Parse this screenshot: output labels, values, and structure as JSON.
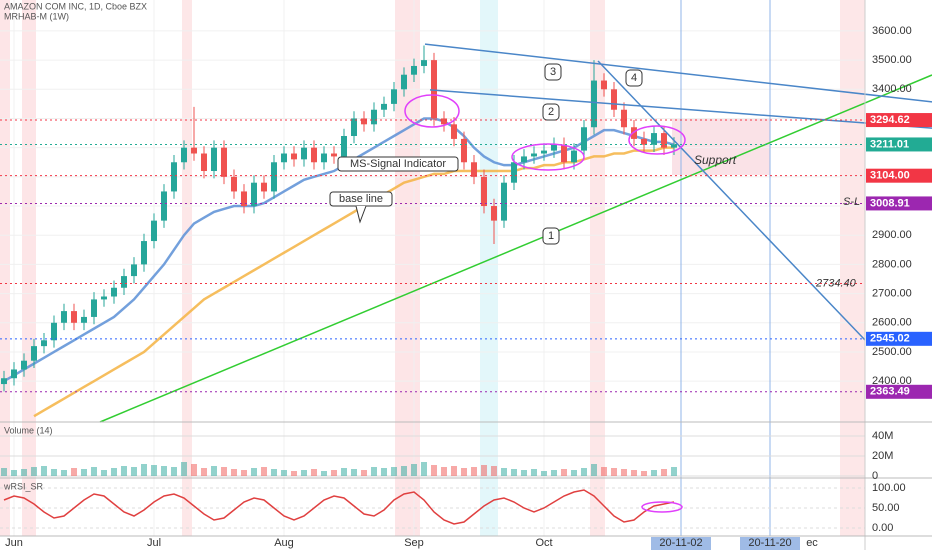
{
  "chart_data": {
    "type": "candlestick",
    "title": "AMAZON COM INC, 1D, Cboe BZX",
    "subtitle": "MRHAB-M (1W)",
    "categories": [
      null,
      "Jun",
      null,
      null,
      null,
      null,
      null,
      null,
      null,
      null,
      null,
      null,
      null,
      null,
      null,
      "Jul",
      null,
      null,
      null,
      null,
      null,
      null,
      null,
      null,
      null,
      null,
      null,
      null,
      "Aug",
      null,
      null,
      null,
      null,
      null,
      null,
      null,
      null,
      null,
      null,
      null,
      null,
      "Sep",
      null,
      null,
      null,
      null,
      null,
      null,
      null,
      null,
      null,
      null,
      null,
      null,
      "Oct",
      null,
      null,
      null,
      null,
      null,
      null,
      null,
      null,
      null,
      null,
      null,
      null,
      null
    ],
    "open": [
      2390,
      2410,
      2440,
      2470,
      2520,
      2540,
      2600,
      2640,
      2600,
      2620,
      2680,
      2690,
      2720,
      2760,
      2800,
      2880,
      2950,
      3050,
      3150,
      3200,
      3180,
      3120,
      3200,
      3100,
      3050,
      3000,
      3080,
      3050,
      3150,
      3180,
      3160,
      3200,
      3150,
      3180,
      3170,
      3240,
      3300,
      3280,
      3330,
      3350,
      3400,
      3450,
      3480,
      3500,
      3300,
      3280,
      3230,
      3150,
      3100,
      3000,
      2950,
      3080,
      3150,
      3170,
      3180,
      3190,
      3210,
      3150,
      3190,
      3270,
      3430,
      3400,
      3330,
      3270,
      3230,
      3210,
      3250,
      3200
    ],
    "high": [
      2435,
      2465,
      2495,
      2545,
      2565,
      2625,
      2665,
      2665,
      2645,
      2705,
      2715,
      2745,
      2785,
      2825,
      2905,
      2975,
      3075,
      3175,
      3225,
      3340,
      3205,
      3225,
      3225,
      3125,
      3075,
      3105,
      3105,
      3175,
      3205,
      3205,
      3225,
      3225,
      3205,
      3205,
      3265,
      3325,
      3325,
      3355,
      3375,
      3425,
      3475,
      3505,
      3550,
      3525,
      3325,
      3305,
      3255,
      3175,
      3125,
      3025,
      3105,
      3175,
      3195,
      3205,
      3215,
      3235,
      3235,
      3215,
      3295,
      3500,
      3455,
      3425,
      3355,
      3295,
      3255,
      3275,
      3275,
      3236
    ],
    "low": [
      2365,
      2385,
      2415,
      2445,
      2495,
      2515,
      2575,
      2575,
      2575,
      2595,
      2655,
      2665,
      2695,
      2735,
      2775,
      2855,
      2925,
      3025,
      3125,
      3155,
      3095,
      3095,
      3075,
      3025,
      2975,
      2975,
      3025,
      3025,
      3125,
      3135,
      3135,
      3125,
      3125,
      3145,
      3145,
      3215,
      3255,
      3255,
      3305,
      3325,
      3375,
      3425,
      3455,
      3275,
      3255,
      3205,
      3125,
      3075,
      2975,
      2870,
      2925,
      3055,
      3125,
      3145,
      3155,
      3165,
      3125,
      3125,
      3165,
      3245,
      3375,
      3305,
      3245,
      3205,
      3185,
      3185,
      3175,
      3175
    ],
    "close": [
      2410,
      2440,
      2470,
      2520,
      2540,
      2600,
      2640,
      2600,
      2620,
      2680,
      2690,
      2720,
      2760,
      2800,
      2880,
      2950,
      3050,
      3150,
      3200,
      3180,
      3120,
      3200,
      3100,
      3050,
      3000,
      3080,
      3050,
      3150,
      3180,
      3160,
      3200,
      3150,
      3180,
      3170,
      3240,
      3300,
      3280,
      3330,
      3350,
      3400,
      3450,
      3480,
      3500,
      3300,
      3280,
      3230,
      3150,
      3100,
      3000,
      2950,
      3080,
      3150,
      3170,
      3180,
      3190,
      3210,
      3150,
      3190,
      3270,
      3430,
      3400,
      3330,
      3270,
      3230,
      3210,
      3250,
      3200,
      3211
    ],
    "up_color": "#26a69a",
    "down_color": "#ef5350",
    "ylim": [
      2260,
      3706
    ],
    "yticks": [
      {
        "value": 2400,
        "label": "2400.00"
      },
      {
        "value": 2500,
        "label": "2500.00"
      },
      {
        "value": 2600,
        "label": "2600.00"
      },
      {
        "value": 2700,
        "label": "2700.00"
      },
      {
        "value": 2800,
        "label": "2800.00"
      },
      {
        "value": 2900,
        "label": "2900.00"
      },
      {
        "value": 3000,
        "label": "3000.00"
      },
      {
        "value": 3100,
        "label": "3100.00"
      },
      {
        "value": 3200,
        "label": "3200.00"
      },
      {
        "value": 3300,
        "label": "3300.00"
      },
      {
        "value": 3400,
        "label": "3400.00"
      },
      {
        "value": 3500,
        "label": "3500.00"
      },
      {
        "value": 3600,
        "label": "3600.00"
      }
    ],
    "overlays": [
      {
        "color": "#5b8fd6",
        "values": [
          2400,
          2420,
          2440,
          2460,
          2480,
          2500,
          2520,
          2540,
          2560,
          2580,
          2600,
          2620,
          2650,
          2680,
          2720,
          2760,
          2800,
          2850,
          2900,
          2940,
          2960,
          2980,
          2990,
          3000,
          3000,
          3000,
          3010,
          3030,
          3050,
          3070,
          3090,
          3100,
          3110,
          3120,
          3140,
          3160,
          3180,
          3200,
          3220,
          3240,
          3260,
          3280,
          3300,
          3300,
          3290,
          3270,
          3240,
          3200,
          3170,
          3150,
          3140,
          3140,
          3150,
          3160,
          3170,
          3180,
          3190,
          3200,
          3220,
          3240,
          3260,
          3260,
          3250,
          3240,
          3230,
          3220,
          3220,
          3210
        ]
      },
      {
        "color": "#f5b342",
        "values": [
          null,
          null,
          null,
          2280,
          2300,
          2320,
          2340,
          2360,
          2380,
          2400,
          2420,
          2440,
          2460,
          2480,
          2500,
          2530,
          2560,
          2590,
          2620,
          2650,
          2680,
          2700,
          2720,
          2740,
          2760,
          2780,
          2800,
          2820,
          2840,
          2860,
          2880,
          2900,
          2920,
          2940,
          2960,
          2980,
          3000,
          3020,
          3040,
          3060,
          3080,
          3090,
          3100,
          3110,
          3110,
          3120,
          3120,
          3120,
          3120,
          3120,
          3120,
          3120,
          3130,
          3130,
          3140,
          3140,
          3150,
          3150,
          3160,
          3170,
          3170,
          3180,
          3180,
          3190,
          3190,
          3190,
          3200,
          3200
        ]
      }
    ],
    "levels": [
      {
        "value": 3294.62,
        "color": "#f23645",
        "badge": true
      },
      {
        "value": 3211.01,
        "color": "#22ab94",
        "badge": true
      },
      {
        "value": 3104,
        "label": "3104.00",
        "color": "#f23645",
        "badge": true
      },
      {
        "value": 3008.91,
        "color": "#9c27b0",
        "badge": true
      },
      {
        "value": 2734.4,
        "label": "2734.40",
        "color": "#f23645",
        "badge": false
      },
      {
        "value": 2545.02,
        "color": "#2962ff",
        "badge": true
      },
      {
        "value": 2363.49,
        "color": "#9c27b0",
        "badge": true
      }
    ],
    "trendlines": [
      {
        "x": [
          9.6,
          92.8
        ],
        "y": [
          2260,
          3449
        ],
        "color": "#32cd32"
      },
      {
        "x": [
          42.1,
          92.8
        ],
        "y": [
          3555,
          3357
        ],
        "color": "#4a86c8"
      },
      {
        "x": [
          42.6,
          92.8
        ],
        "y": [
          3398,
          3267
        ],
        "color": "#4a86c8"
      },
      {
        "x": [
          59.4,
          86.1
        ],
        "y": [
          3497,
          2541
        ],
        "color": "#4a86c8"
      }
    ],
    "xmarkers": [
      {
        "value": 67.7,
        "label": "20-11-02"
      },
      {
        "value": 76.6,
        "label": "20-11-20"
      },
      {
        "value": 80.8,
        "label": "ec"
      }
    ],
    "annotations": [
      "MS-Signal Indicator",
      "base line",
      "Support",
      "S-L",
      "1",
      "2",
      "3",
      "4"
    ],
    "panels": [
      {
        "type": "bar",
        "title": "Volume (14)",
        "values": [
          8,
          6,
          7,
          9,
          10,
          7,
          6,
          8,
          7,
          9,
          6,
          8,
          10,
          9,
          12,
          11,
          10,
          9,
          14,
          12,
          8,
          10,
          9,
          7,
          6,
          8,
          9,
          7,
          6,
          5,
          6,
          7,
          5,
          6,
          8,
          7,
          6,
          9,
          8,
          9,
          10,
          12,
          14,
          11,
          9,
          10,
          8,
          9,
          11,
          10,
          8,
          7,
          6,
          7,
          5,
          6,
          7,
          6,
          8,
          12,
          9,
          8,
          7,
          6,
          5,
          6,
          7,
          9
        ],
        "ylim": [
          -2,
          52
        ],
        "yticks": [
          0,
          {
            "value": 20,
            "label": "20M"
          },
          {
            "value": 40,
            "label": "40M"
          }
        ]
      },
      {
        "type": "line",
        "title": "wRSI_SR",
        "color": "#e04040",
        "values": [
          70,
          80,
          75,
          60,
          40,
          25,
          30,
          50,
          70,
          85,
          80,
          60,
          40,
          30,
          45,
          65,
          80,
          85,
          75,
          55,
          35,
          20,
          25,
          45,
          65,
          75,
          70,
          50,
          30,
          20,
          30,
          50,
          70,
          80,
          75,
          55,
          35,
          30,
          45,
          70,
          85,
          90,
          70,
          40,
          20,
          10,
          15,
          35,
          55,
          70,
          75,
          65,
          50,
          40,
          50,
          65,
          80,
          90,
          95,
          80,
          55,
          30,
          15,
          20,
          40,
          55,
          60,
          65
        ],
        "ylim": [
          -17.5,
          120
        ],
        "yticks": [
          {
            "value": 0,
            "label": "0.00"
          },
          {
            "value": 50,
            "label": "50.00"
          },
          {
            "value": 100,
            "label": "100.00"
          }
        ]
      }
    ]
  }
}
